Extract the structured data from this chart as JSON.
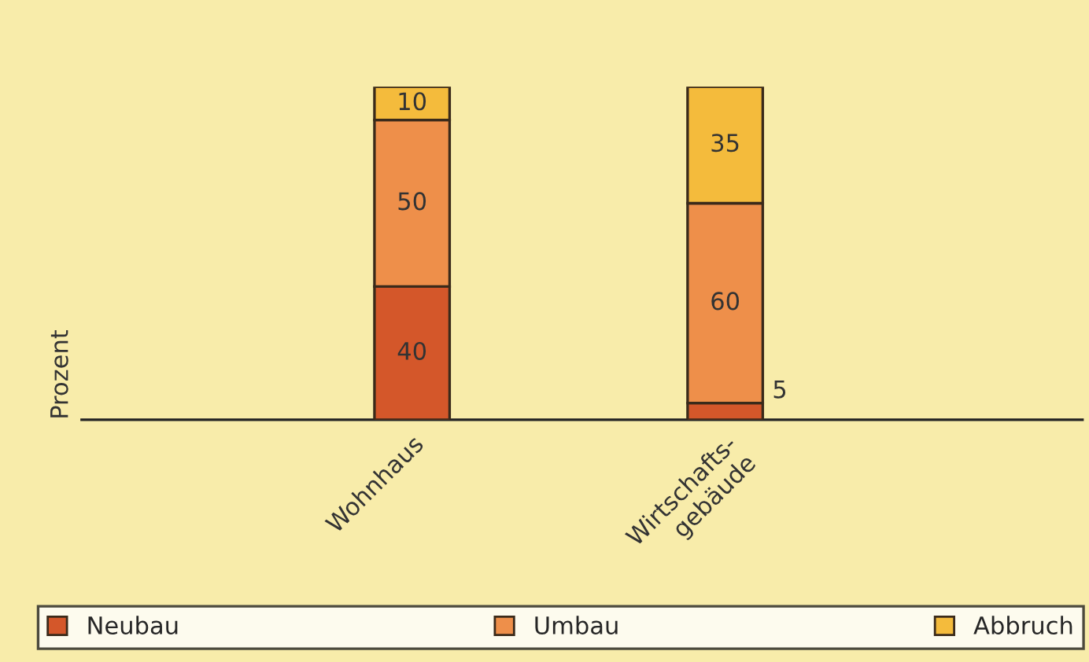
{
  "chart_data": {
    "type": "bar",
    "stacked": true,
    "ylabel": "Prozent",
    "categories": [
      "Wohnhaus",
      "Wirtschafts-\ngebäude"
    ],
    "series": [
      {
        "name": "Neubau",
        "color": "#d4572a",
        "values": [
          40,
          5
        ]
      },
      {
        "name": "Umbau",
        "color": "#ee8f4a",
        "values": [
          50,
          60
        ]
      },
      {
        "name": "Abbruch",
        "color": "#f4bb3c",
        "values": [
          10,
          35
        ]
      }
    ],
    "ylim": [
      0,
      100
    ],
    "data_labels": true,
    "legend": "bottom",
    "tick_labels": "x"
  }
}
